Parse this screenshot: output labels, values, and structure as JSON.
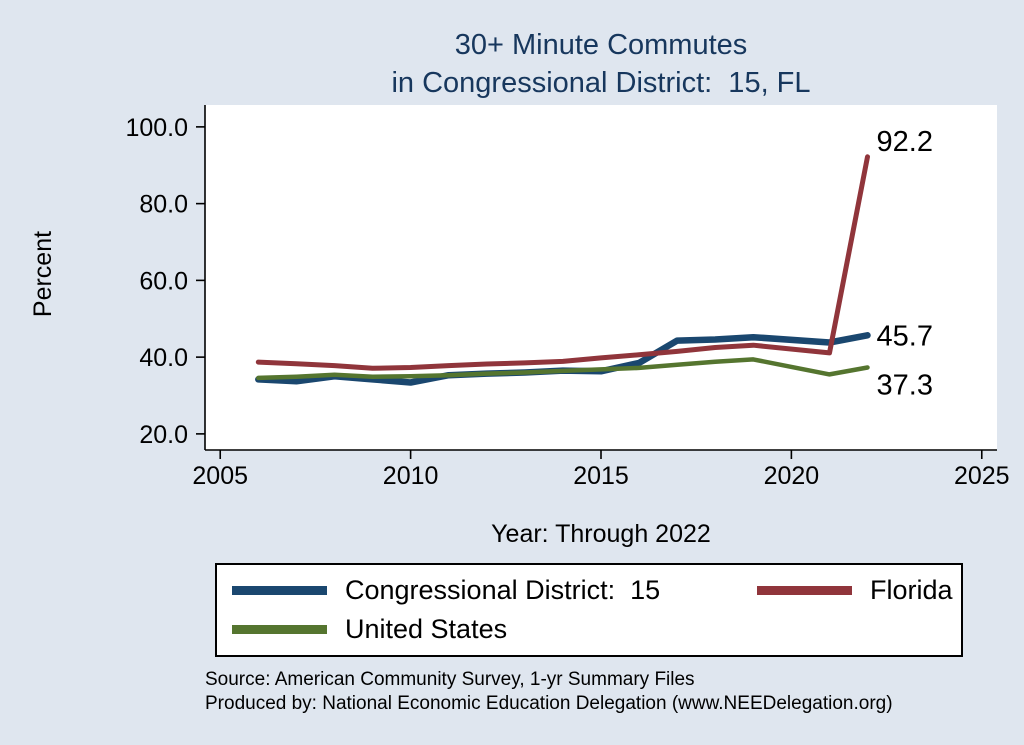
{
  "title": {
    "line1": "30+ Minute Commutes",
    "line2": "in Congressional District:  15, FL"
  },
  "y_axis_title": "Percent",
  "x_axis_title": "Year: Through 2022",
  "colors": {
    "background": "#dfe6ef",
    "plot_background": "#ffffff",
    "axis": "#000000",
    "title_text": "#17375d",
    "annotation_text": "#000000",
    "navy": "#1a476f",
    "maroon": "#90353b",
    "olive": "#55752f"
  },
  "legend": {
    "items": [
      {
        "label": "Congressional District:  15",
        "color": "#1a476f"
      },
      {
        "label": "Florida",
        "color": "#90353b"
      },
      {
        "label": "United States",
        "color": "#55752f"
      }
    ]
  },
  "footer": {
    "line1": "Source: American Community Survey, 1-yr Summary Files",
    "line2": "Produced by: National Economic Education Delegation (www.NEEDelegation.org)"
  },
  "chart_data": {
    "type": "line",
    "title": "30+ Minute Commutes in Congressional District: 15, FL",
    "xlabel": "Year: Through 2022",
    "ylabel": "Percent",
    "grid": false,
    "legend_position": "bottom",
    "x": [
      2006,
      2007,
      2008,
      2009,
      2010,
      2011,
      2012,
      2013,
      2014,
      2015,
      2016,
      2017,
      2018,
      2019,
      2021,
      2022
    ],
    "series": [
      {
        "name": "Congressional District:  15",
        "color": "#1a476f",
        "stroke_width": 6.5,
        "values": [
          34.2,
          33.7,
          35.0,
          34.2,
          33.4,
          35.3,
          35.7,
          36.0,
          36.5,
          36.3,
          38.5,
          44.3,
          44.6,
          45.2,
          43.8,
          45.7
        ],
        "end_label": "45.7",
        "end_label_dx": 9,
        "end_label_dy": 10
      },
      {
        "name": "Florida",
        "color": "#90353b",
        "stroke_width": 5,
        "values": [
          38.7,
          38.3,
          37.8,
          37.1,
          37.3,
          37.8,
          38.2,
          38.5,
          38.9,
          39.8,
          40.6,
          41.5,
          42.5,
          43.1,
          41.1,
          92.2
        ],
        "end_label": "92.2",
        "end_label_dx": 9,
        "end_label_dy": -6
      },
      {
        "name": "United States",
        "color": "#55752f",
        "stroke_width": 4.5,
        "values": [
          34.6,
          34.9,
          35.4,
          34.9,
          35.0,
          35.3,
          35.7,
          36.0,
          36.4,
          36.8,
          37.2,
          38.0,
          38.8,
          39.4,
          35.5,
          37.3
        ],
        "end_label": "37.3",
        "end_label_dx": 9,
        "end_label_dy": 27
      }
    ],
    "xticks": [
      2005,
      2010,
      2015,
      2020,
      2025
    ],
    "xtick_labels": [
      "2005",
      "2010",
      "2015",
      "2020",
      "2025"
    ],
    "yticks": [
      20,
      40,
      60,
      80,
      100
    ],
    "ytick_labels": [
      "20.0",
      "40.0",
      "60.0",
      "80.0",
      "100.0"
    ],
    "xlim": [
      2004.6,
      2025.4
    ],
    "ylim": [
      15.8,
      105.7
    ]
  }
}
